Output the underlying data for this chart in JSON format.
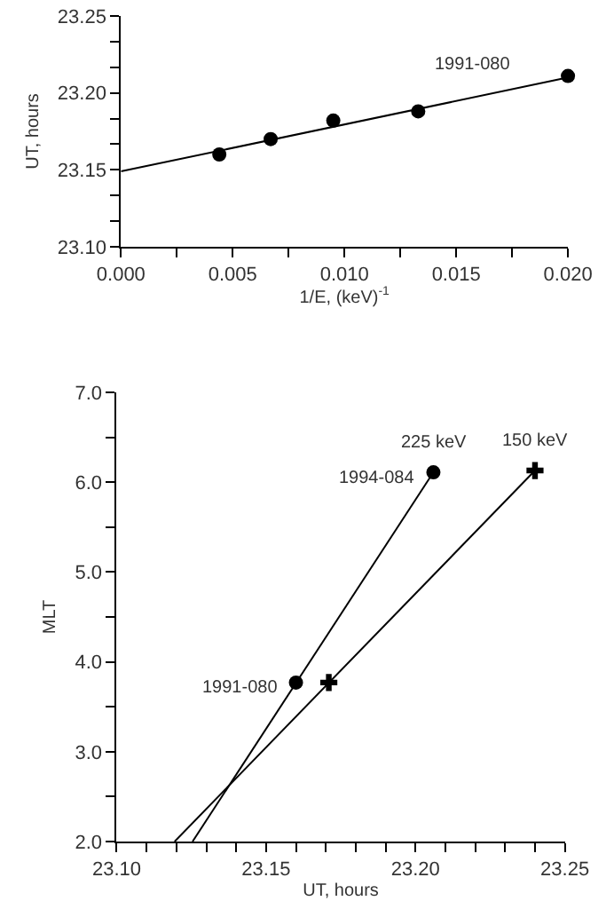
{
  "chart_data": [
    {
      "type": "scatter",
      "xlabel": "1/E, (keV)$^{-1}$",
      "ylabel": "UT, hours",
      "xlim": [
        0,
        0.02
      ],
      "ylim": [
        23.1,
        23.25
      ],
      "xticks": [
        {
          "value": 0,
          "label": "0.000"
        },
        {
          "value": 0.0025,
          "label": null
        },
        {
          "value": 0.005,
          "label": "0.005"
        },
        {
          "value": 0.0075,
          "label": null
        },
        {
          "value": 0.01,
          "label": "0.010"
        },
        {
          "value": 0.0125,
          "label": null
        },
        {
          "value": 0.015,
          "label": "0.015"
        },
        {
          "value": 0.0175,
          "label": null
        },
        {
          "value": 0.02,
          "label": "0.020"
        }
      ],
      "yticks": [
        {
          "value": 23.1,
          "label": "23.10"
        },
        {
          "value": 23.1167,
          "label": null
        },
        {
          "value": 23.1333,
          "label": null
        },
        {
          "value": 23.15,
          "label": "23.15"
        },
        {
          "value": 23.1667,
          "label": null
        },
        {
          "value": 23.1833,
          "label": null
        },
        {
          "value": 23.2,
          "label": "23.20"
        },
        {
          "value": 23.2167,
          "label": null
        },
        {
          "value": 23.2333,
          "label": null
        },
        {
          "value": 23.25,
          "label": "23.25"
        }
      ],
      "legend": false,
      "annotations": [
        "1991-080"
      ],
      "series": [
        {
          "marker": "circle",
          "color": "#000000",
          "x": [
            0.0044,
            0.0067,
            0.0095,
            0.0133,
            0.02
          ],
          "values": [
            23.16,
            23.17,
            23.182,
            23.188,
            23.211
          ]
        },
        {
          "type": "line",
          "marker": "none",
          "line_style": "solid",
          "color": "#000000",
          "x": [
            0,
            0.02
          ],
          "values": [
            23.149,
            23.21
          ]
        }
      ]
    },
    {
      "type": "scatter",
      "xlabel": "UT, hours",
      "ylabel": "MLT",
      "xlim": [
        23.1,
        23.25
      ],
      "ylim": [
        2,
        7
      ],
      "xticks": [
        {
          "value": 23.1,
          "label": "23.10"
        },
        {
          "value": 23.11,
          "label": null
        },
        {
          "value": 23.12,
          "label": null
        },
        {
          "value": 23.13,
          "label": null
        },
        {
          "value": 23.14,
          "label": null
        },
        {
          "value": 23.15,
          "label": "23.15"
        },
        {
          "value": 23.16,
          "label": null
        },
        {
          "value": 23.17,
          "label": null
        },
        {
          "value": 23.18,
          "label": null
        },
        {
          "value": 23.19,
          "label": null
        },
        {
          "value": 23.2,
          "label": "23.20"
        },
        {
          "value": 23.21,
          "label": null
        },
        {
          "value": 23.22,
          "label": null
        },
        {
          "value": 23.23,
          "label": null
        },
        {
          "value": 23.24,
          "label": null
        },
        {
          "value": 23.25,
          "label": "23.25"
        }
      ],
      "yticks": [
        {
          "value": 2,
          "label": "2.0"
        },
        {
          "value": 2.5,
          "label": null
        },
        {
          "value": 3,
          "label": "3.0"
        },
        {
          "value": 3.5,
          "label": null
        },
        {
          "value": 4,
          "label": "4.0"
        },
        {
          "value": 4.5,
          "label": null
        },
        {
          "value": 5,
          "label": "5.0"
        },
        {
          "value": 5.5,
          "label": null
        },
        {
          "value": 6,
          "label": "6.0"
        },
        {
          "value": 6.5,
          "label": null
        },
        {
          "value": 7,
          "label": "7.0"
        }
      ],
      "legend": false,
      "annotations": [
        {
          "text": "1994-084",
          "x": 23.206,
          "y": 6.11
        },
        {
          "text": "1991-080",
          "x": 23.16,
          "y": 3.77
        }
      ],
      "series": [
        {
          "name": "225 keV",
          "marker": "circle",
          "color": "#000000",
          "x": [
            23.16,
            23.206
          ],
          "values": [
            3.77,
            6.11
          ]
        },
        {
          "name": "150 keV",
          "marker": "cross",
          "color": "#000000",
          "x": [
            23.171,
            23.24
          ],
          "values": [
            3.77,
            6.13
          ]
        },
        {
          "type": "line",
          "marker": "none",
          "line_style": "solid",
          "color": "#000000",
          "x": [
            23.1254,
            23.206
          ],
          "values": [
            2.0,
            6.11
          ]
        },
        {
          "type": "line",
          "marker": "none",
          "line_style": "solid",
          "color": "#000000",
          "x": [
            23.1194,
            23.24
          ],
          "values": [
            2.0,
            6.13
          ]
        }
      ]
    }
  ]
}
